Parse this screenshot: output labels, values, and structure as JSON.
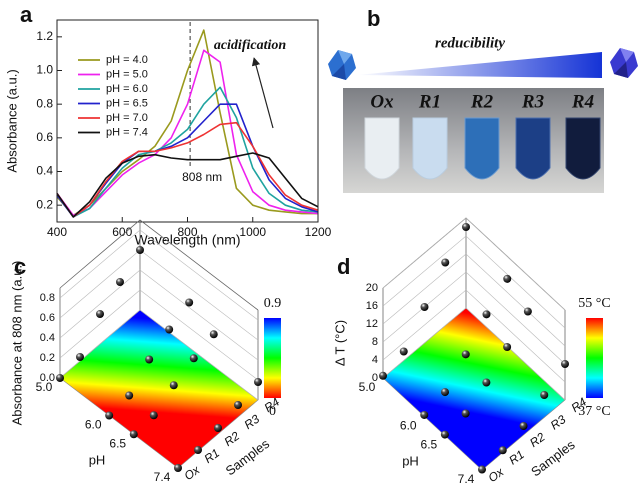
{
  "chart_data": [
    {
      "type": "line",
      "panel_label": "a",
      "xlabel": "Wavelength (nm)",
      "ylabel": "Absorbance (a.u.)",
      "x": [
        400,
        450,
        500,
        550,
        600,
        650,
        700,
        750,
        800,
        850,
        900,
        950,
        1000,
        1050,
        1100,
        1150,
        1200
      ],
      "series": [
        {
          "name": "pH = 4.0",
          "color": "#9a9a1e",
          "values": [
            0.25,
            0.14,
            0.2,
            0.3,
            0.4,
            0.47,
            0.55,
            0.7,
            1.0,
            1.24,
            0.75,
            0.3,
            0.2,
            0.17,
            0.16,
            0.15,
            0.15
          ]
        },
        {
          "name": "pH = 5.0",
          "color": "#ee22ee",
          "values": [
            0.27,
            0.14,
            0.18,
            0.28,
            0.38,
            0.45,
            0.5,
            0.6,
            0.8,
            1.12,
            1.05,
            0.5,
            0.28,
            0.2,
            0.17,
            0.16,
            0.15
          ]
        },
        {
          "name": "pH = 6.0",
          "color": "#1fa3a0",
          "values": [
            0.26,
            0.13,
            0.18,
            0.3,
            0.42,
            0.5,
            0.52,
            0.57,
            0.65,
            0.8,
            0.9,
            0.72,
            0.42,
            0.27,
            0.2,
            0.17,
            0.16
          ]
        },
        {
          "name": "pH = 6.5",
          "color": "#2222cc",
          "values": [
            0.26,
            0.13,
            0.2,
            0.33,
            0.45,
            0.52,
            0.52,
            0.55,
            0.6,
            0.7,
            0.8,
            0.8,
            0.55,
            0.35,
            0.24,
            0.19,
            0.16
          ]
        },
        {
          "name": "pH = 7.0",
          "color": "#ee3333",
          "values": [
            0.27,
            0.13,
            0.2,
            0.34,
            0.46,
            0.52,
            0.52,
            0.54,
            0.57,
            0.62,
            0.68,
            0.69,
            0.55,
            0.38,
            0.26,
            0.2,
            0.17
          ]
        },
        {
          "name": "pH = 7.4",
          "color": "#111111",
          "values": [
            0.27,
            0.13,
            0.22,
            0.36,
            0.45,
            0.49,
            0.5,
            0.48,
            0.47,
            0.47,
            0.47,
            0.49,
            0.51,
            0.48,
            0.36,
            0.24,
            0.19
          ]
        }
      ],
      "xlim": [
        400,
        1200
      ],
      "ylim": [
        0.1,
        1.3
      ],
      "xticks": [
        400,
        600,
        800,
        1000,
        1200
      ],
      "yticks": [
        0.2,
        0.4,
        0.6,
        0.8,
        {
          "value": 1,
          "label": "1.0"
        },
        1.2
      ],
      "legend": "upper left",
      "annotations": [
        {
          "text": "acidification"
        },
        {
          "text": "808 nm",
          "x": 808
        }
      ]
    },
    {
      "type": "scatter3d",
      "panel_label": "c",
      "zlabel": "Absorbance at 808 nm (a.u.)",
      "xlabel": "pH",
      "ylabel": "Samples",
      "x": [
        {
          "value": 5,
          "label": "5.0"
        },
        {
          "value": 6,
          "label": "6.0"
        },
        6.5,
        7.4
      ],
      "xlim": [
        5,
        7.4
      ],
      "categories": [
        "Ox",
        "R1",
        "R2",
        "R3",
        "R4"
      ],
      "values": [
        [
          0,
          0.04,
          0.3,
          0.45,
          0.6
        ],
        [
          0,
          0.03,
          0.22,
          0.35,
          0.45
        ],
        [
          0,
          0.02,
          0.15,
          0.25,
          0.32
        ],
        [
          0,
          0.01,
          0.06,
          0.12,
          0.18
        ]
      ],
      "zlim": [
        0,
        0.9
      ],
      "zticks": [
        {
          "value": 0,
          "label": "0.0"
        },
        0.2,
        0.4,
        0.6,
        0.8
      ],
      "colorbar": [
        {
          "value": 0.9,
          "label": "0.9"
        },
        0
      ],
      "colors": [
        "#0000ff",
        "#00ffff",
        "#00ff00",
        "#ffff00",
        "#ff0000"
      ]
    },
    {
      "type": "scatter3d",
      "panel_label": "d",
      "zlabel": "Δ T (°C)",
      "xlabel": "pH",
      "ylabel": "Samples",
      "x": [
        {
          "value": 5,
          "label": "5.0"
        },
        {
          "value": 6,
          "label": "6.0"
        },
        6.5,
        7.4
      ],
      "xlim": [
        5,
        7.4
      ],
      "categories": [
        "Ox",
        "R1",
        "R2",
        "R3",
        "R4"
      ],
      "values": [
        [
          0.5,
          2,
          8,
          14,
          18
        ],
        [
          0.3,
          1.5,
          6,
          11,
          15
        ],
        [
          0.2,
          1,
          4,
          8,
          12
        ],
        [
          0.1,
          0.5,
          2,
          5,
          8
        ]
      ],
      "zlim": [
        0,
        20
      ],
      "zticks": [
        0,
        4,
        8,
        12,
        16,
        20
      ],
      "colorbar": [
        {
          "value": 55,
          "label": "55 °C"
        },
        {
          "value": 37,
          "label": "37 °C"
        }
      ],
      "colors": [
        "#ff0000",
        "#ffff00",
        "#00ff00",
        "#00ffff",
        "#0000ff"
      ]
    }
  ],
  "photo": {
    "panel_label": "b",
    "title": "reducibility",
    "vials": [
      "Ox",
      "R1",
      "R2",
      "R3",
      "R4"
    ]
  }
}
